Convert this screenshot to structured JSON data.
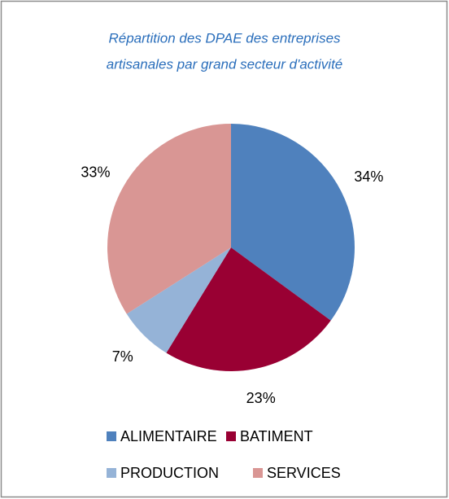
{
  "chart_data": {
    "type": "pie",
    "title": [
      "Répartition des DPAE des entreprises",
      "artisanales par grand secteur d'activité"
    ],
    "categories": [
      "ALIMENTAIRE",
      "BATIMENT",
      "PRODUCTION",
      "SERVICES"
    ],
    "values": [
      34,
      23,
      7,
      33
    ],
    "value_labels": [
      "34%",
      "23%",
      "7%",
      "33%"
    ],
    "colors": [
      "#4f81bd",
      "#990033",
      "#95b3d7",
      "#d99694"
    ],
    "legend": "bottom"
  }
}
